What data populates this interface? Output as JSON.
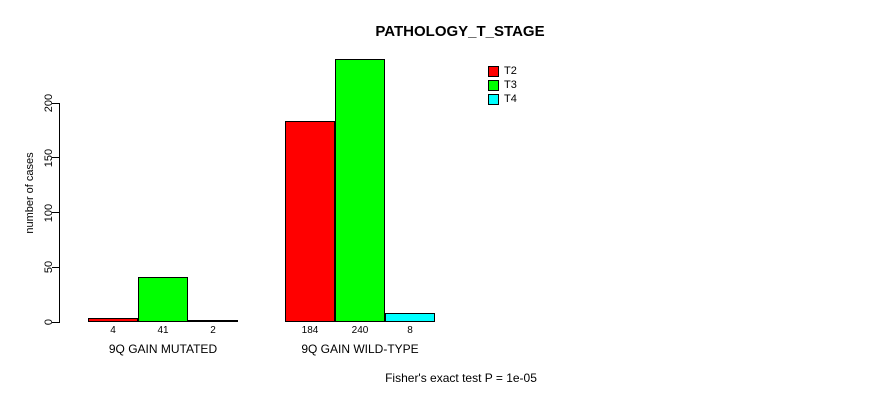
{
  "title": "PATHOLOGY_T_STAGE",
  "footer": "Fisher's exact test P = 1e-05",
  "chart_data": {
    "type": "bar",
    "title": "PATHOLOGY_T_STAGE",
    "xlabel": "",
    "ylabel": "number of cases",
    "categories": [
      "9Q GAIN MUTATED",
      "9Q GAIN WILD-TYPE"
    ],
    "series": [
      {
        "name": "T2",
        "color": "#ff0000",
        "values": [
          4,
          184
        ]
      },
      {
        "name": "T3",
        "color": "#00ff00",
        "values": [
          41,
          240
        ]
      },
      {
        "name": "T4",
        "color": "#00ffff",
        "values": [
          2,
          8
        ]
      }
    ],
    "y_ticks": [
      0,
      50,
      100,
      150,
      200
    ],
    "ylim": [
      0,
      200
    ],
    "grid": false,
    "legend_position": "top-right",
    "legend": [
      "T2",
      "T3",
      "T4"
    ],
    "bar_outline_color": "#000000",
    "annotation": "Fisher's exact test P = 1e-05"
  }
}
